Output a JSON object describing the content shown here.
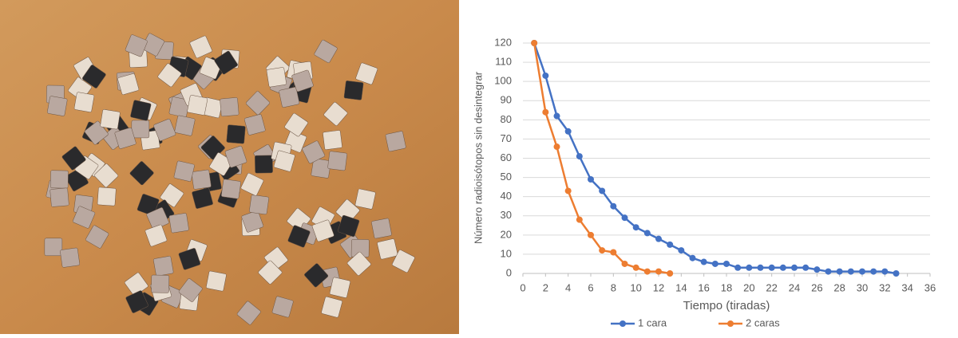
{
  "chart_data": {
    "type": "line",
    "xlabel": "Tiempo (tiradas)",
    "ylabel": "Número radioisótopos sin desintegrar",
    "xlim": [
      0,
      36
    ],
    "xticks": [
      0,
      2,
      4,
      6,
      8,
      10,
      12,
      14,
      16,
      18,
      20,
      22,
      24,
      26,
      28,
      30,
      32,
      34,
      36
    ],
    "ylim": [
      0,
      120
    ],
    "yticks": [
      0,
      10,
      20,
      30,
      40,
      50,
      60,
      70,
      80,
      90,
      100,
      110,
      120
    ],
    "grid": true,
    "legend": "bottom",
    "series": [
      {
        "name": "1 cara",
        "color": "#4472c4",
        "x": [
          1,
          2,
          3,
          4,
          5,
          6,
          7,
          8,
          9,
          10,
          11,
          12,
          13,
          14,
          15,
          16,
          17,
          18,
          19,
          20,
          21,
          22,
          23,
          24,
          25,
          26,
          27,
          28,
          29,
          30,
          31,
          32,
          33
        ],
        "values": [
          120,
          103,
          82,
          74,
          61,
          49,
          43,
          35,
          29,
          24,
          21,
          18,
          15,
          12,
          8,
          6,
          5,
          5,
          3,
          3,
          3,
          3,
          3,
          3,
          3,
          2,
          1,
          1,
          1,
          1,
          1,
          1,
          0
        ]
      },
      {
        "name": "2 caras",
        "color": "#ed7d31",
        "x": [
          1,
          2,
          3,
          4,
          5,
          6,
          7,
          8,
          9,
          10,
          11,
          12,
          13
        ],
        "values": [
          120,
          84,
          66,
          43,
          28,
          20,
          12,
          11,
          5,
          3,
          1,
          1,
          0
        ]
      }
    ]
  }
}
